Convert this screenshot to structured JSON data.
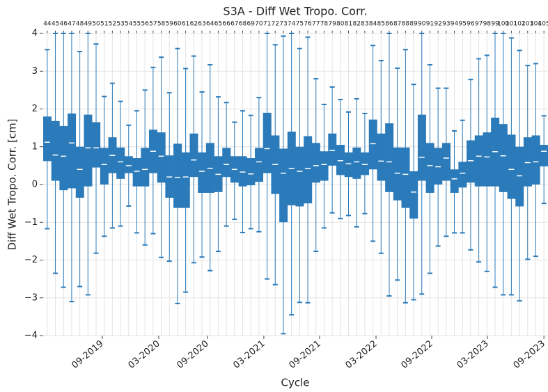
{
  "chart_data": {
    "type": "box",
    "title": "S3A  - Diff Wet Tropo. Corr.",
    "x_label": "Cycle",
    "y_label": "Diff Wet Tropo. Corr. [cm]",
    "color": "#2b7bba",
    "x": [
      44,
      45,
      46,
      47,
      48,
      49,
      50,
      51,
      52,
      53,
      54,
      55,
      56,
      57,
      58,
      59,
      60,
      61,
      62,
      63,
      64,
      65,
      66,
      67,
      68,
      69,
      70,
      71,
      72,
      73,
      74,
      75,
      76,
      77,
      78,
      79,
      80,
      81,
      82,
      83,
      84,
      85,
      86,
      87,
      88,
      89,
      90,
      91,
      92,
      93,
      94,
      95,
      96,
      97,
      98,
      99,
      100,
      101,
      102,
      103,
      104,
      105
    ],
    "box_low": [
      0.62,
      0.1,
      -0.15,
      -0.1,
      -0.35,
      -0.05,
      0.45,
      0.0,
      0.3,
      0.15,
      0.3,
      -0.05,
      -0.05,
      0.3,
      0.05,
      -0.35,
      -0.62,
      -0.62,
      0.2,
      -0.22,
      -0.22,
      -0.2,
      0.2,
      0.05,
      -0.05,
      -0.02,
      0.07,
      0.3,
      -0.25,
      -1.0,
      -0.55,
      -0.58,
      -0.5,
      0.05,
      0.1,
      0.5,
      0.25,
      0.2,
      0.15,
      0.25,
      0.4,
      0.1,
      -0.2,
      -0.42,
      -0.62,
      -0.9,
      0.1,
      -0.22,
      0.0,
      0.1,
      -0.22,
      -0.08,
      0.05,
      -0.05,
      -0.05,
      -0.05,
      -0.2,
      -0.38,
      -0.58,
      -0.05,
      0.0,
      0.48
    ],
    "box_high": [
      1.8,
      1.68,
      1.55,
      1.88,
      1.0,
      1.85,
      1.65,
      0.97,
      1.25,
      0.98,
      0.75,
      0.7,
      0.97,
      1.45,
      1.38,
      0.77,
      1.08,
      0.85,
      1.35,
      0.85,
      1.1,
      0.75,
      0.97,
      0.75,
      0.75,
      0.7,
      0.97,
      1.9,
      1.3,
      0.95,
      1.4,
      1.0,
      1.28,
      1.1,
      0.88,
      1.35,
      1.05,
      0.85,
      0.98,
      0.85,
      1.72,
      1.35,
      1.62,
      0.98,
      0.98,
      0.35,
      1.85,
      1.1,
      0.97,
      1.1,
      0.4,
      0.6,
      1.17,
      1.3,
      1.38,
      1.77,
      1.6,
      1.32,
      1.0,
      1.25,
      1.3,
      1.05
    ],
    "mean": [
      1.12,
      0.78,
      0.75,
      1.1,
      0.4,
      0.97,
      0.97,
      0.53,
      0.77,
      0.6,
      0.5,
      0.35,
      0.4,
      0.88,
      0.75,
      0.2,
      0.19,
      0.2,
      0.65,
      0.35,
      0.43,
      0.27,
      0.53,
      0.4,
      0.33,
      0.28,
      0.6,
      0.95,
      0.53,
      0.3,
      0.42,
      0.35,
      0.42,
      0.5,
      0.53,
      0.9,
      0.63,
      0.55,
      0.6,
      0.53,
      1.08,
      0.62,
      0.6,
      0.3,
      0.27,
      -0.2,
      0.72,
      0.5,
      0.47,
      0.7,
      0.15,
      0.3,
      0.63,
      0.75,
      0.73,
      0.87,
      0.76,
      0.4,
      0.23,
      0.58,
      0.6,
      0.88
    ],
    "min": [
      -1.17,
      -2.35,
      -2.72,
      -3.1,
      -2.7,
      -2.92,
      -1.82,
      -1.37,
      -1.15,
      -1.1,
      -0.57,
      -1.28,
      -1.6,
      -1.3,
      -1.93,
      -2.03,
      -3.15,
      -2.85,
      -2.07,
      -1.92,
      -2.28,
      -1.77,
      -1.1,
      -0.92,
      -1.27,
      -1.17,
      -1.25,
      -2.5,
      -2.65,
      -3.95,
      -3.45,
      -3.12,
      -3.13,
      -1.77,
      -1.15,
      -0.75,
      -0.9,
      -0.82,
      -1.12,
      -0.77,
      -1.5,
      -1.82,
      -2.95,
      -2.53,
      -3.13,
      -3.05,
      -2.9,
      -2.35,
      -1.63,
      -1.37,
      -1.28,
      -1.28,
      -1.73,
      -2.05,
      -2.3,
      -2.72,
      -2.92,
      -2.92,
      -3.08,
      -1.98,
      -1.9,
      -0.5
    ],
    "max": [
      3.57,
      4.0,
      4.0,
      4.0,
      3.52,
      4.0,
      3.72,
      2.33,
      2.68,
      2.2,
      1.57,
      1.95,
      2.5,
      3.1,
      3.37,
      2.43,
      3.6,
      3.07,
      3.4,
      2.45,
      3.17,
      2.32,
      2.17,
      1.65,
      1.95,
      1.83,
      2.3,
      4.0,
      3.7,
      3.93,
      4.0,
      3.6,
      3.9,
      2.8,
      2.12,
      2.58,
      2.25,
      1.92,
      2.27,
      1.88,
      3.68,
      3.28,
      4.0,
      3.08,
      3.57,
      2.65,
      4.0,
      3.17,
      2.55,
      2.55,
      1.42,
      1.7,
      2.78,
      3.33,
      3.42,
      4.0,
      4.0,
      3.88,
      3.55,
      3.15,
      3.2,
      1.82
    ],
    "xlim": [
      43.5,
      105.5
    ],
    "xticks": [
      {
        "value": 50.76,
        "label": "09-2019"
      },
      {
        "value": 57.69,
        "label": "03-2020"
      },
      {
        "value": 63.67,
        "label": "09-2020"
      },
      {
        "value": 70.6,
        "label": "03-2021"
      },
      {
        "value": 77.45,
        "label": "09-2021"
      },
      {
        "value": 84.38,
        "label": "03-2022"
      },
      {
        "value": 91.22,
        "label": "09-2022"
      },
      {
        "value": 98.06,
        "label": "03-2023"
      },
      {
        "value": 105.0,
        "label": "09-2023"
      }
    ],
    "ylim": [
      -4,
      4
    ],
    "yticks": [
      {
        "value": -4,
        "label": "−4"
      },
      {
        "value": -3,
        "label": "−3"
      },
      {
        "value": -2,
        "label": "−2"
      },
      {
        "value": -1,
        "label": "−1"
      },
      0,
      1,
      2,
      3,
      4
    ],
    "grid": true
  }
}
